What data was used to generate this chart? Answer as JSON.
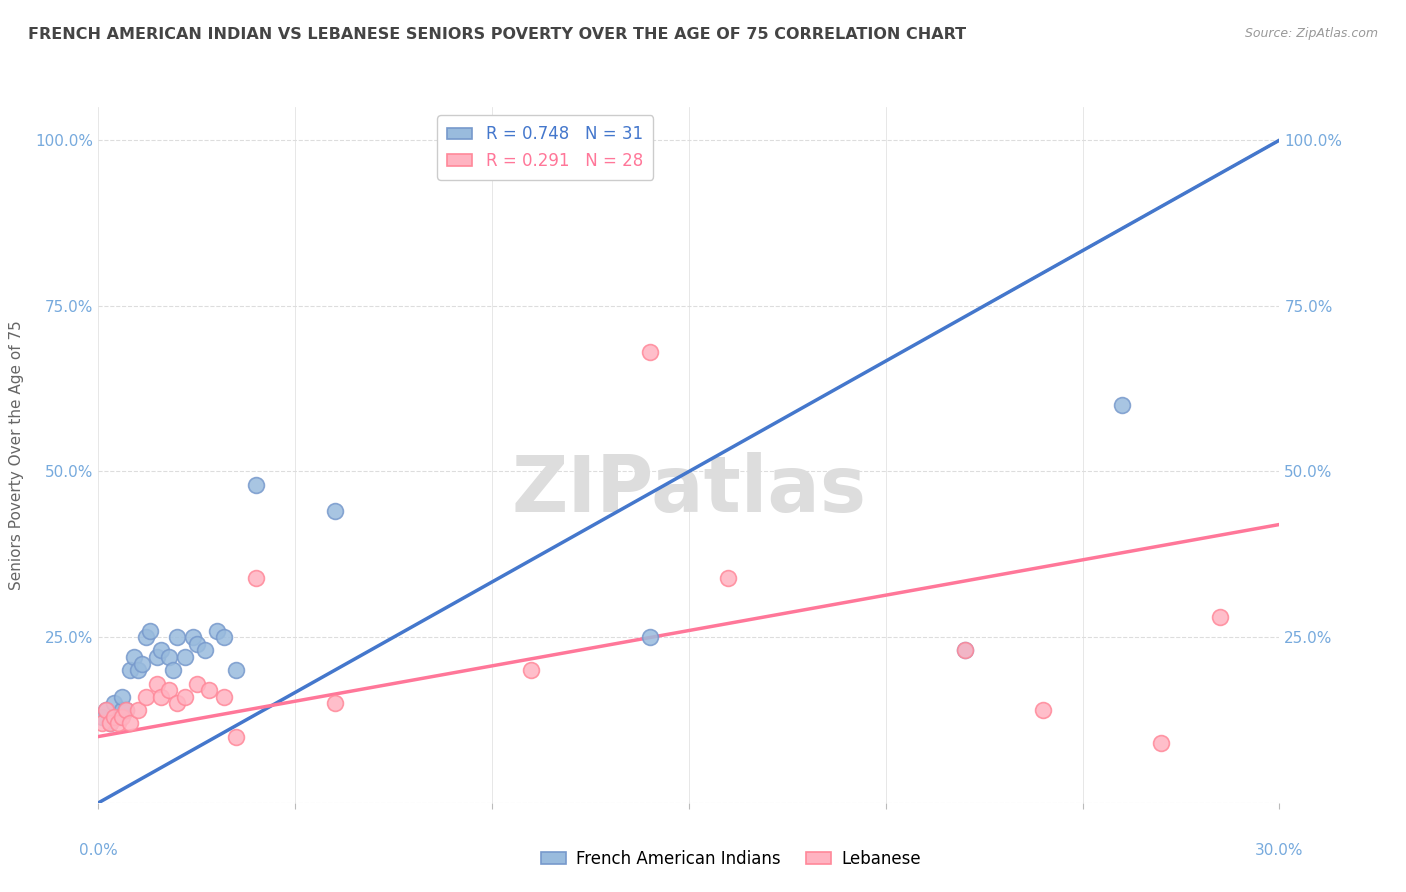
{
  "title": "FRENCH AMERICAN INDIAN VS LEBANESE SENIORS POVERTY OVER THE AGE OF 75 CORRELATION CHART",
  "source": "Source: ZipAtlas.com",
  "ylabel": "Seniors Poverty Over the Age of 75",
  "yticks": [
    "",
    "25.0%",
    "50.0%",
    "75.0%",
    "100.0%"
  ],
  "ytick_vals": [
    0.0,
    0.25,
    0.5,
    0.75,
    1.0
  ],
  "xlim": [
    0.0,
    0.3
  ],
  "ylim": [
    0.0,
    1.05
  ],
  "legend1_r": "0.748",
  "legend1_n": "31",
  "legend2_r": "0.291",
  "legend2_n": "28",
  "blue_scatter_color": "#99BBDD",
  "blue_scatter_edge": "#7799CC",
  "pink_scatter_color": "#FFB3C1",
  "pink_scatter_edge": "#FF8899",
  "blue_line_color": "#4477CC",
  "pink_line_color": "#FF7799",
  "grid_color": "#DDDDDD",
  "axis_label_color": "#77AADD",
  "title_color": "#444444",
  "source_color": "#999999",
  "ylabel_color": "#666666",
  "watermark_color": "#DDDDDD",
  "blue_line_x0": 0.0,
  "blue_line_y0": 0.0,
  "blue_line_x1": 0.3,
  "blue_line_y1": 1.0,
  "pink_line_x0": 0.0,
  "pink_line_y0": 0.1,
  "pink_line_x1": 0.3,
  "pink_line_y1": 0.42,
  "dash_line_x0": 0.225,
  "dash_line_y0": 0.75,
  "dash_line_x1": 0.3,
  "dash_line_y1": 1.0,
  "french_x": [
    0.001,
    0.002,
    0.003,
    0.004,
    0.005,
    0.006,
    0.006,
    0.007,
    0.008,
    0.009,
    0.01,
    0.011,
    0.012,
    0.013,
    0.015,
    0.016,
    0.018,
    0.019,
    0.02,
    0.022,
    0.024,
    0.025,
    0.027,
    0.03,
    0.032,
    0.035,
    0.04,
    0.06,
    0.14,
    0.22,
    0.26
  ],
  "french_y": [
    0.13,
    0.14,
    0.12,
    0.15,
    0.13,
    0.14,
    0.16,
    0.14,
    0.2,
    0.22,
    0.2,
    0.21,
    0.25,
    0.26,
    0.22,
    0.23,
    0.22,
    0.2,
    0.25,
    0.22,
    0.25,
    0.24,
    0.23,
    0.26,
    0.25,
    0.2,
    0.48,
    0.44,
    0.25,
    0.23,
    0.6
  ],
  "lebanese_x": [
    0.001,
    0.002,
    0.003,
    0.004,
    0.005,
    0.006,
    0.007,
    0.008,
    0.01,
    0.012,
    0.015,
    0.016,
    0.018,
    0.02,
    0.022,
    0.025,
    0.028,
    0.032,
    0.035,
    0.04,
    0.06,
    0.11,
    0.14,
    0.16,
    0.22,
    0.24,
    0.27,
    0.285
  ],
  "lebanese_y": [
    0.12,
    0.14,
    0.12,
    0.13,
    0.12,
    0.13,
    0.14,
    0.12,
    0.14,
    0.16,
    0.18,
    0.16,
    0.17,
    0.15,
    0.16,
    0.18,
    0.17,
    0.16,
    0.1,
    0.34,
    0.15,
    0.2,
    0.68,
    0.34,
    0.23,
    0.14,
    0.09,
    0.28
  ]
}
